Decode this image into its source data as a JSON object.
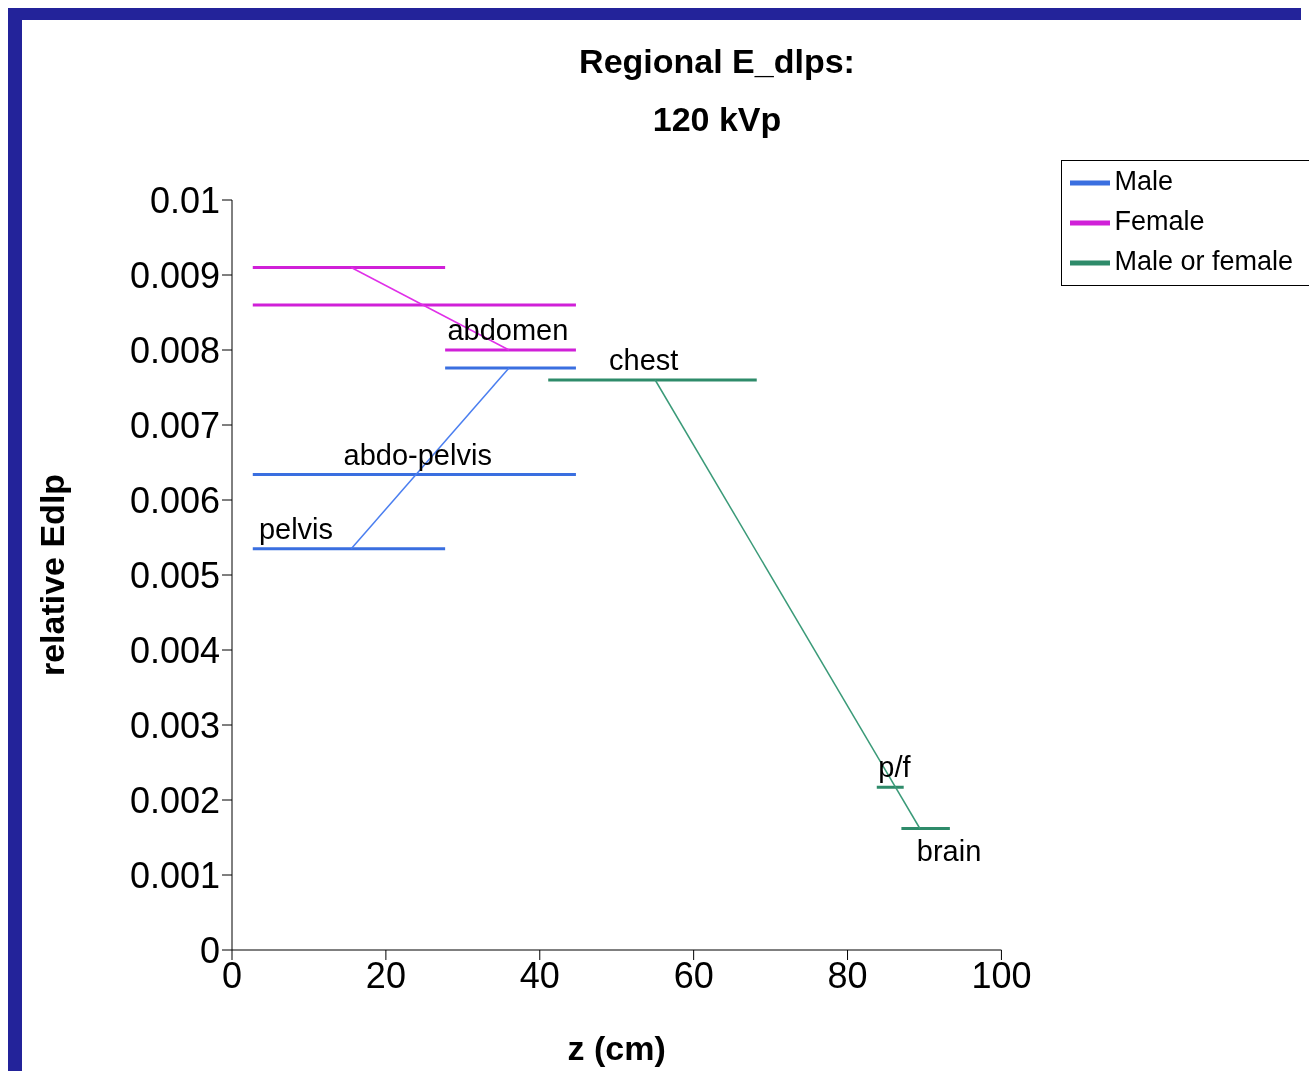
{
  "chart_data": {
    "type": "line",
    "title": "Regional E_dlps:",
    "subtitle": "120 kVp",
    "xlabel": "z (cm)",
    "ylabel": "relative Edlp",
    "xlim": [
      0,
      100
    ],
    "xticks": [
      0,
      20,
      40,
      60,
      80,
      100
    ],
    "ylim": [
      0,
      0.01
    ],
    "yticks": [
      0,
      0.001,
      0.002,
      0.003,
      0.004,
      0.005,
      0.006,
      0.007,
      0.008,
      0.009,
      0.01
    ],
    "grid": false,
    "legend": "top right",
    "marker": "none",
    "line_style": "solid",
    "series": [
      {
        "name": "Male",
        "color": "#3a6fe0",
        "x": [
          2.7,
          27.7,
          null,
          2.7,
          44.7,
          null,
          27.7,
          44.7
        ],
        "values": [
          0.00535,
          0.00535,
          null,
          0.00634,
          0.00634,
          null,
          0.00776,
          0.00776
        ]
      },
      {
        "name": "Female",
        "color": "#d020d8",
        "x": [
          2.7,
          27.7,
          null,
          2.7,
          44.7,
          null,
          27.7,
          44.7
        ],
        "values": [
          0.0091,
          0.0091,
          null,
          0.0086,
          0.0086,
          null,
          0.008,
          0.008
        ]
      },
      {
        "name": "Male or female",
        "color": "#2e8b6a",
        "x": [
          41.1,
          68.2,
          null,
          83.8,
          87.3,
          null,
          87,
          93.3
        ],
        "values": [
          0.0076,
          0.0076,
          null,
          0.00217,
          0.00217,
          null,
          0.00162,
          0.00162
        ]
      },
      {
        "type": "line",
        "color": "#4a7ef0",
        "x": [
          15.5,
          36
        ],
        "values": [
          0.00535,
          0.00776
        ]
      },
      {
        "type": "line",
        "color": "#e030e8",
        "x": [
          15.5,
          36
        ],
        "values": [
          0.0091,
          0.008
        ]
      },
      {
        "type": "line",
        "color": "#3a9a78",
        "x": [
          55,
          89.4
        ],
        "values": [
          0.0076,
          0.00162
        ]
      }
    ],
    "annotations": [
      {
        "text": "pelvis",
        "x": 3.5,
        "y": 0.00535
      },
      {
        "text": "abdo-pelvis",
        "x": 14.5,
        "y": 0.00634
      },
      {
        "text": "abdomen",
        "x": 28,
        "y": 0.008
      },
      {
        "text": "chest",
        "x": 49,
        "y": 0.0076
      },
      {
        "text": "p/f",
        "x": 84,
        "y": 0.00217
      },
      {
        "text": "brain",
        "x": 89,
        "y": 0.00162
      }
    ]
  }
}
